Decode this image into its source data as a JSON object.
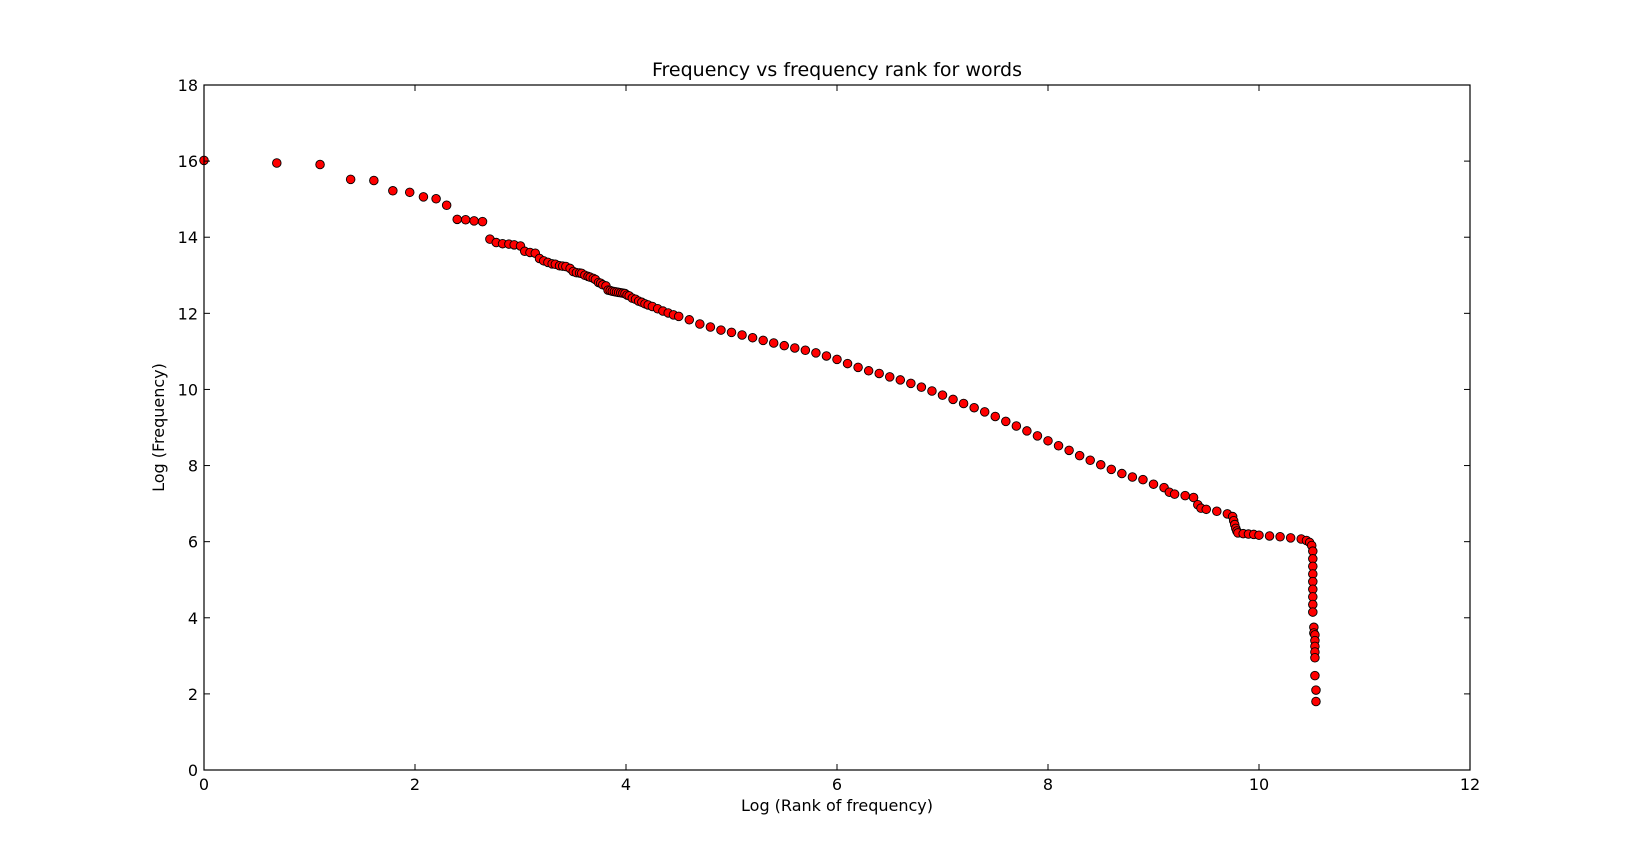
{
  "chart_data": {
    "type": "scatter",
    "title": "Frequency vs frequency rank for words",
    "xlabel": "Log (Rank of frequency)",
    "ylabel": "Log (Frequency)",
    "xlim": [
      0,
      12
    ],
    "ylim": [
      0,
      18
    ],
    "xticks": [
      0,
      2,
      4,
      6,
      8,
      10,
      12
    ],
    "yticks": [
      0,
      2,
      4,
      6,
      8,
      10,
      12,
      14,
      16,
      18
    ],
    "grid": false,
    "marker_color": "#ff0000",
    "marker_edge_color": "#000000",
    "series": [
      {
        "points": [
          [
            0.0,
            16.02
          ],
          [
            0.69,
            15.95
          ],
          [
            1.1,
            15.91
          ],
          [
            1.39,
            15.52
          ],
          [
            1.61,
            15.49
          ],
          [
            1.79,
            15.22
          ],
          [
            1.95,
            15.18
          ],
          [
            2.08,
            15.06
          ],
          [
            2.2,
            15.01
          ],
          [
            2.3,
            14.84
          ],
          [
            2.4,
            14.47
          ],
          [
            2.48,
            14.46
          ],
          [
            2.56,
            14.43
          ],
          [
            2.64,
            14.41
          ],
          [
            2.71,
            13.95
          ],
          [
            2.77,
            13.86
          ],
          [
            2.83,
            13.83
          ],
          [
            2.89,
            13.82
          ],
          [
            2.94,
            13.8
          ],
          [
            3.0,
            13.77
          ],
          [
            3.04,
            13.63
          ],
          [
            3.09,
            13.6
          ],
          [
            3.14,
            13.58
          ],
          [
            3.18,
            13.44
          ],
          [
            3.22,
            13.38
          ],
          [
            3.26,
            13.34
          ],
          [
            3.3,
            13.3
          ],
          [
            3.33,
            13.29
          ],
          [
            3.37,
            13.25
          ],
          [
            3.4,
            13.24
          ],
          [
            3.43,
            13.23
          ],
          [
            3.47,
            13.18
          ],
          [
            3.5,
            13.1
          ],
          [
            3.53,
            13.07
          ],
          [
            3.56,
            13.06
          ],
          [
            3.58,
            13.05
          ],
          [
            3.61,
            13.0
          ],
          [
            3.64,
            12.97
          ],
          [
            3.66,
            12.95
          ],
          [
            3.69,
            12.92
          ],
          [
            3.71,
            12.89
          ],
          [
            3.74,
            12.81
          ],
          [
            3.76,
            12.79
          ],
          [
            3.78,
            12.75
          ],
          [
            3.81,
            12.72
          ],
          [
            3.83,
            12.61
          ],
          [
            3.85,
            12.6
          ],
          [
            3.87,
            12.58
          ],
          [
            3.89,
            12.57
          ],
          [
            3.91,
            12.56
          ],
          [
            3.93,
            12.55
          ],
          [
            3.95,
            12.54
          ],
          [
            3.97,
            12.53
          ],
          [
            3.99,
            12.52
          ],
          [
            4.01,
            12.48
          ],
          [
            4.03,
            12.46
          ],
          [
            4.06,
            12.4
          ],
          [
            4.09,
            12.37
          ],
          [
            4.12,
            12.32
          ],
          [
            4.15,
            12.29
          ],
          [
            4.18,
            12.25
          ],
          [
            4.21,
            12.22
          ],
          [
            4.25,
            12.18
          ],
          [
            4.3,
            12.12
          ],
          [
            4.35,
            12.06
          ],
          [
            4.4,
            12.01
          ],
          [
            4.45,
            11.96
          ],
          [
            4.5,
            11.92
          ],
          [
            4.6,
            11.83
          ],
          [
            4.7,
            11.72
          ],
          [
            4.8,
            11.64
          ],
          [
            4.9,
            11.56
          ],
          [
            5.0,
            11.5
          ],
          [
            5.1,
            11.43
          ],
          [
            5.2,
            11.36
          ],
          [
            5.3,
            11.29
          ],
          [
            5.4,
            11.22
          ],
          [
            5.5,
            11.15
          ],
          [
            5.6,
            11.09
          ],
          [
            5.7,
            11.03
          ],
          [
            5.8,
            10.96
          ],
          [
            5.9,
            10.88
          ],
          [
            6.0,
            10.79
          ],
          [
            6.1,
            10.68
          ],
          [
            6.2,
            10.58
          ],
          [
            6.3,
            10.49
          ],
          [
            6.4,
            10.42
          ],
          [
            6.5,
            10.33
          ],
          [
            6.6,
            10.25
          ],
          [
            6.7,
            10.16
          ],
          [
            6.8,
            10.06
          ],
          [
            6.9,
            9.96
          ],
          [
            7.0,
            9.85
          ],
          [
            7.1,
            9.74
          ],
          [
            7.2,
            9.63
          ],
          [
            7.3,
            9.52
          ],
          [
            7.4,
            9.41
          ],
          [
            7.5,
            9.29
          ],
          [
            7.6,
            9.16
          ],
          [
            7.7,
            9.04
          ],
          [
            7.8,
            8.91
          ],
          [
            7.9,
            8.78
          ],
          [
            8.0,
            8.65
          ],
          [
            8.1,
            8.52
          ],
          [
            8.2,
            8.4
          ],
          [
            8.3,
            8.26
          ],
          [
            8.4,
            8.14
          ],
          [
            8.5,
            8.02
          ],
          [
            8.6,
            7.9
          ],
          [
            8.7,
            7.79
          ],
          [
            8.8,
            7.7
          ],
          [
            8.9,
            7.63
          ],
          [
            9.0,
            7.51
          ],
          [
            9.1,
            7.42
          ],
          [
            9.15,
            7.3
          ],
          [
            9.2,
            7.25
          ],
          [
            9.3,
            7.21
          ],
          [
            9.38,
            7.16
          ],
          [
            9.42,
            6.97
          ],
          [
            9.45,
            6.88
          ],
          [
            9.5,
            6.85
          ],
          [
            9.6,
            6.8
          ],
          [
            9.7,
            6.73
          ],
          [
            9.75,
            6.66
          ],
          [
            9.76,
            6.55
          ],
          [
            9.77,
            6.45
          ],
          [
            9.78,
            6.35
          ],
          [
            9.79,
            6.28
          ],
          [
            9.8,
            6.23
          ],
          [
            9.85,
            6.21
          ],
          [
            9.9,
            6.2
          ],
          [
            9.95,
            6.19
          ],
          [
            10.0,
            6.17
          ],
          [
            10.1,
            6.15
          ],
          [
            10.2,
            6.13
          ],
          [
            10.3,
            6.1
          ],
          [
            10.4,
            6.07
          ],
          [
            10.45,
            6.03
          ],
          [
            10.48,
            5.98
          ],
          [
            10.5,
            5.9
          ],
          [
            10.51,
            5.75
          ],
          [
            10.51,
            5.55
          ],
          [
            10.51,
            5.35
          ],
          [
            10.51,
            5.15
          ],
          [
            10.51,
            4.95
          ],
          [
            10.51,
            4.75
          ],
          [
            10.51,
            4.55
          ],
          [
            10.51,
            4.35
          ],
          [
            10.51,
            4.15
          ],
          [
            10.52,
            3.75
          ],
          [
            10.52,
            3.6
          ],
          [
            10.53,
            3.55
          ],
          [
            10.53,
            3.4
          ],
          [
            10.53,
            3.25
          ],
          [
            10.53,
            3.1
          ],
          [
            10.53,
            2.95
          ],
          [
            10.53,
            2.48
          ],
          [
            10.54,
            2.1
          ],
          [
            10.54,
            1.8
          ]
        ]
      }
    ]
  }
}
